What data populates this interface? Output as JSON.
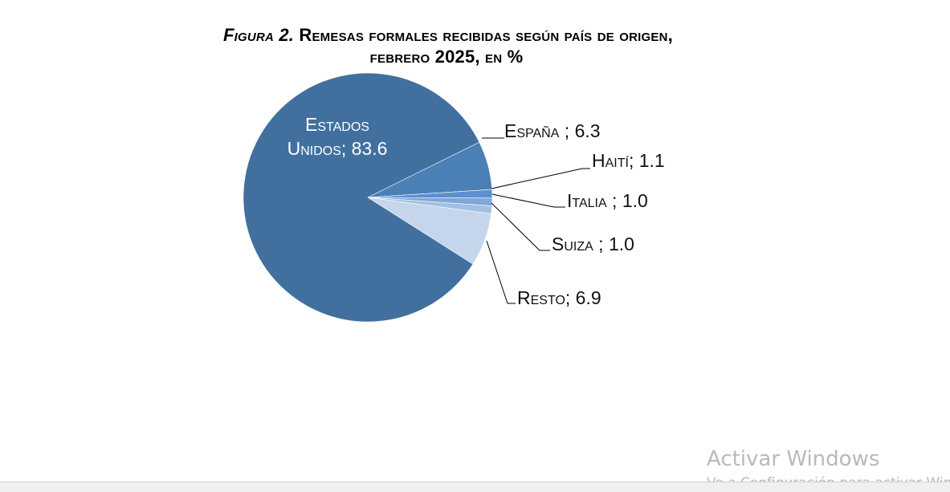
{
  "title": {
    "line1_prefix": "Figura 2.",
    "line1_rest": "Remesas formales recibidas según país de origen,",
    "line2": "febrero 2025, en %"
  },
  "chart_data": {
    "type": "pie",
    "title": "Figura 2. Remesas formales recibidas según país de origen, febrero 2025, en %",
    "slices": [
      {
        "name": "Estados Unidos",
        "value": 83.6,
        "label_lines": [
          "Estados",
          "Unidos; 83.6"
        ],
        "color": "#41709f"
      },
      {
        "name": "España",
        "value": 6.3,
        "label_lines": [
          "España ; 6.3"
        ],
        "color": "#4a80b6"
      },
      {
        "name": "Haití",
        "value": 1.1,
        "label_lines": [
          "Haití; 1.1"
        ],
        "color": "#5c90cf"
      },
      {
        "name": "Italia",
        "value": 1.0,
        "label_lines": [
          "Italia ; 1.0"
        ],
        "color": "#7ea7da"
      },
      {
        "name": "Suiza",
        "value": 1.0,
        "label_lines": [
          "Suiza ; 1.0"
        ],
        "color": "#a2bfe4"
      },
      {
        "name": "Resto",
        "value": 6.9,
        "label_lines": [
          "Resto; 6.9"
        ],
        "color": "#c5d6ec"
      }
    ]
  },
  "watermark": {
    "title": "Activar Windows",
    "subtitle": "Ve a Configuración para activar Windows."
  }
}
